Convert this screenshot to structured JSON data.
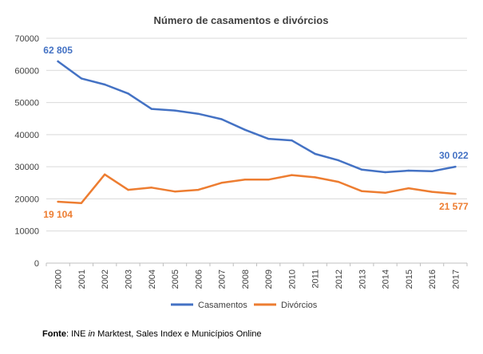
{
  "chart_data": {
    "type": "line",
    "title": "Número de casamentos e divórcios",
    "categories": [
      "2000",
      "2001",
      "2002",
      "2003",
      "2004",
      "2005",
      "2006",
      "2007",
      "2008",
      "2009",
      "2010",
      "2011",
      "2012",
      "2013",
      "2014",
      "2015",
      "2016",
      "2017"
    ],
    "series": [
      {
        "name": "Casamentos",
        "color": "#4472C4",
        "values": [
          62805,
          57500,
          55600,
          52800,
          48000,
          47500,
          46500,
          44800,
          41500,
          38700,
          38200,
          34000,
          32000,
          29100,
          28300,
          28800,
          28600,
          30022
        ],
        "first_label": "62 805",
        "last_label": "30 022"
      },
      {
        "name": "Divórcios",
        "color": "#ED7D31",
        "values": [
          19104,
          18700,
          27600,
          22800,
          23500,
          22300,
          22800,
          25000,
          26000,
          26000,
          27400,
          26700,
          25300,
          22400,
          21900,
          23300,
          22200,
          21577
        ],
        "first_label": "19 104",
        "last_label": "21 577"
      }
    ],
    "ylim": [
      0,
      70000
    ],
    "yticks": [
      "0",
      "10000",
      "20000",
      "30000",
      "40000",
      "50000",
      "60000",
      "70000"
    ],
    "xlabel": "",
    "ylabel": "",
    "grid": true,
    "legend_position": "bottom"
  },
  "source": {
    "label": "Fonte",
    "prefix": ": INE ",
    "italic": "in",
    "suffix": " Marktest, Sales Index e Municípios Online"
  }
}
